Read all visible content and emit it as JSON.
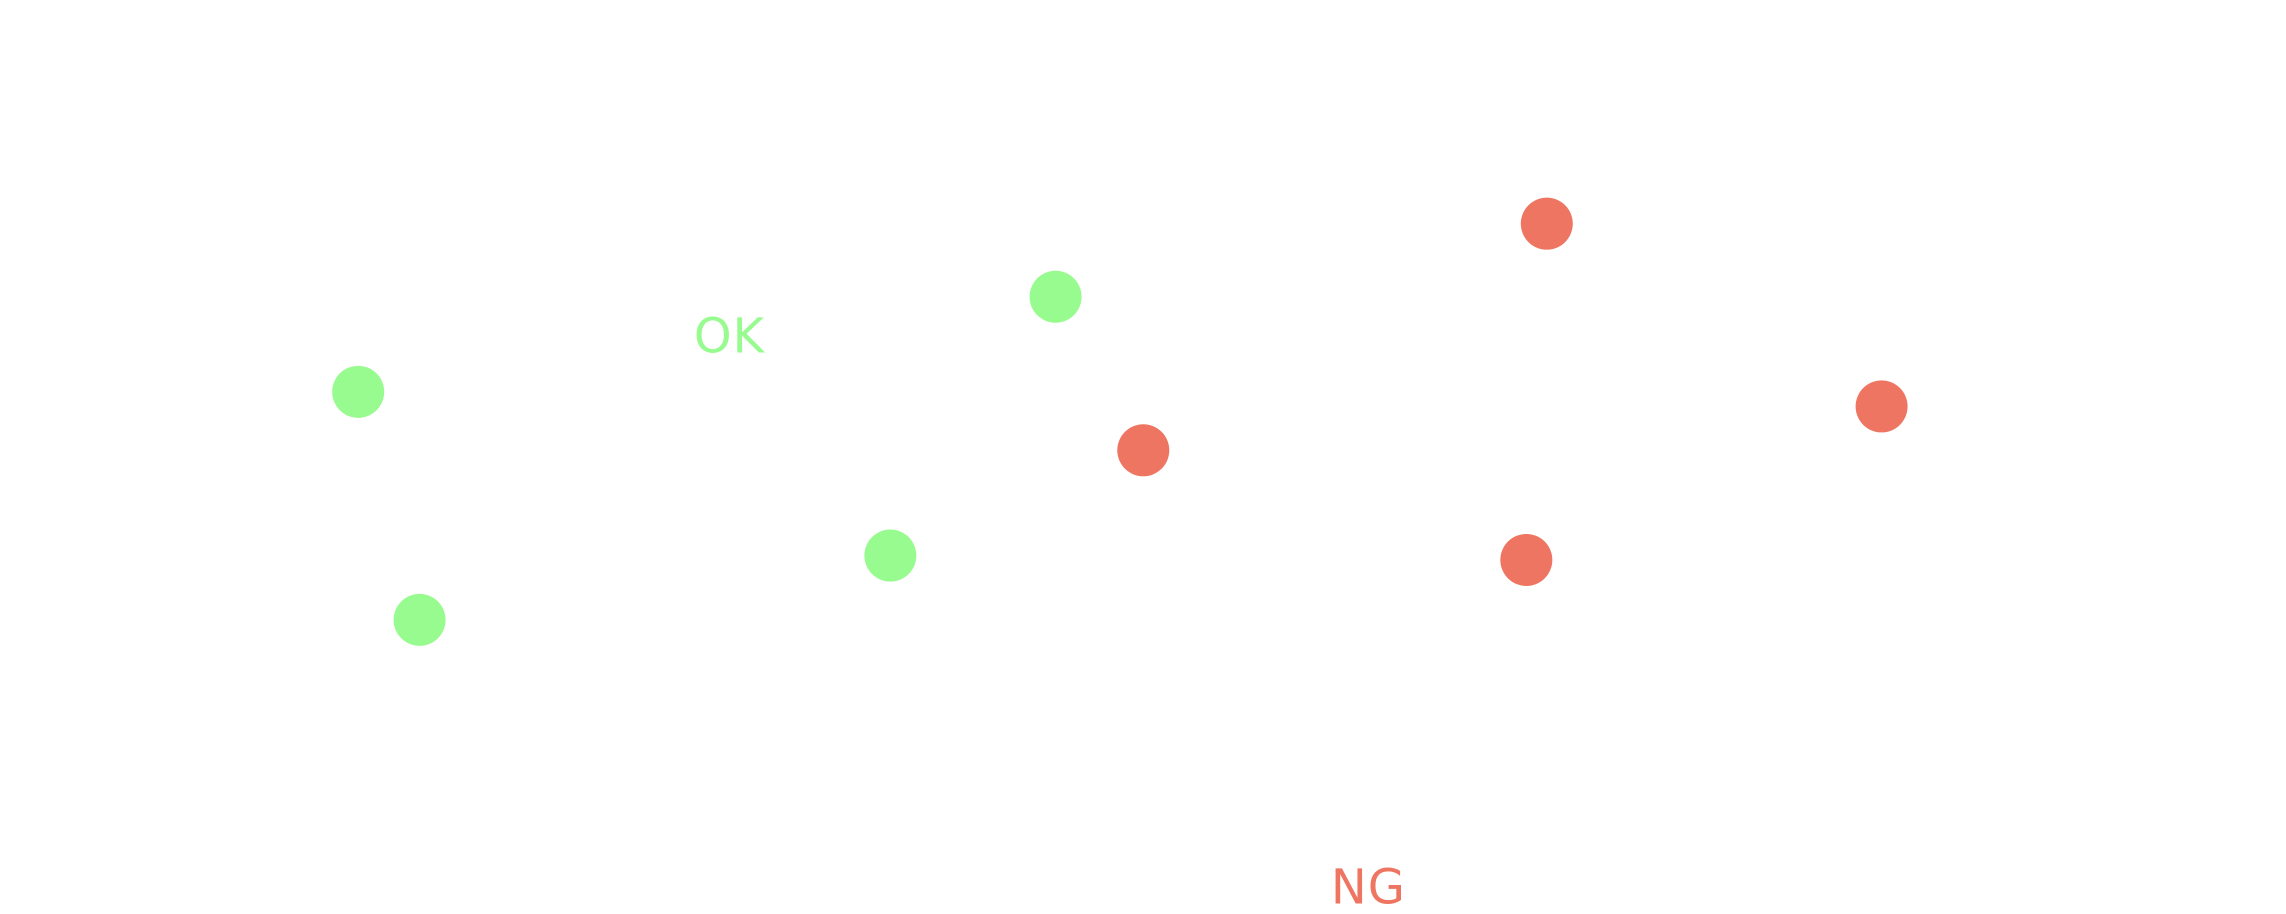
{
  "chart_data": {
    "type": "scatter",
    "colors": {
      "ok": "#98FB8F",
      "ng": "#EE7561"
    },
    "series": [
      {
        "name": "OK",
        "color": "#98FB8F",
        "points": [
          {
            "x": 0.245,
            "y": 0.268
          },
          {
            "x": 0.287,
            "y": 0.424
          },
          {
            "x": 0.609,
            "y": 0.38
          },
          {
            "x": 0.722,
            "y": 0.203
          }
        ]
      },
      {
        "name": "NG",
        "color": "#EE7561",
        "points": [
          {
            "x": 0.782,
            "y": 0.308
          },
          {
            "x": 1.044,
            "y": 0.383
          },
          {
            "x": 1.058,
            "y": 0.153
          },
          {
            "x": 1.287,
            "y": 0.278
          }
        ]
      }
    ],
    "annotations": [
      {
        "text": "OK",
        "series": "OK",
        "x": 0.499,
        "y": 0.23
      },
      {
        "text": "NG",
        "series": "NG",
        "x": 0.936,
        "y": 0.607
      }
    ]
  }
}
